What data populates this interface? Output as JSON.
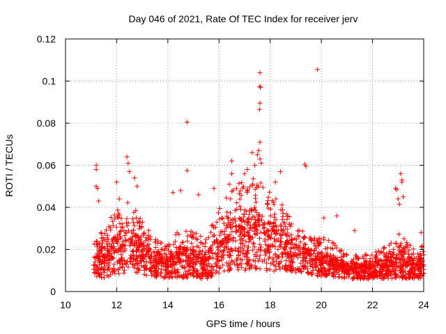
{
  "chart_data": {
    "type": "scatter",
    "marker": "plus",
    "title": "Day 046 of 2021, Rate Of TEC Index for receiver jerv",
    "xlabel": "GPS time / hours",
    "ylabel": "ROTI / TECUs",
    "xlim": [
      10,
      24
    ],
    "ylim": [
      0,
      0.12
    ],
    "grid": true,
    "xticks": [
      10,
      12,
      14,
      16,
      18,
      20,
      22,
      24
    ],
    "xtick_labels": [
      "10",
      "12",
      "14",
      "16",
      "18",
      "20",
      "22",
      "24"
    ],
    "yticks": [
      0,
      0.02,
      0.04,
      0.06,
      0.08,
      0.1,
      0.12
    ],
    "ytick_labels": [
      "0",
      "0.02",
      "0.04",
      "0.06",
      "0.08",
      "0.1",
      "0.12"
    ],
    "marker_color": "#ff0000",
    "envelope": {
      "description": "approximate typical ROTI level and spread vs time (dense cloud)",
      "time": [
        11.1,
        11.5,
        12.0,
        12.5,
        13.0,
        13.5,
        14.0,
        14.5,
        15.0,
        15.5,
        16.0,
        16.5,
        17.0,
        17.5,
        18.0,
        18.5,
        19.0,
        19.5,
        20.0,
        20.5,
        21.0,
        21.5,
        22.0,
        22.5,
        23.0,
        23.5,
        24.0
      ],
      "base": [
        0.012,
        0.014,
        0.018,
        0.02,
        0.016,
        0.013,
        0.011,
        0.014,
        0.013,
        0.012,
        0.018,
        0.022,
        0.024,
        0.025,
        0.022,
        0.02,
        0.016,
        0.014,
        0.013,
        0.012,
        0.01,
        0.009,
        0.01,
        0.011,
        0.013,
        0.011,
        0.011
      ],
      "spread": [
        0.01,
        0.015,
        0.02,
        0.022,
        0.016,
        0.012,
        0.01,
        0.015,
        0.014,
        0.012,
        0.02,
        0.025,
        0.028,
        0.03,
        0.025,
        0.02,
        0.014,
        0.012,
        0.012,
        0.01,
        0.008,
        0.007,
        0.008,
        0.01,
        0.014,
        0.01,
        0.01
      ]
    },
    "outliers": [
      {
        "x": 11.2,
        "y": 0.06
      },
      {
        "x": 11.2,
        "y": 0.058
      },
      {
        "x": 11.2,
        "y": 0.05
      },
      {
        "x": 11.25,
        "y": 0.049
      },
      {
        "x": 11.3,
        "y": 0.043
      },
      {
        "x": 12.0,
        "y": 0.052
      },
      {
        "x": 12.1,
        "y": 0.044
      },
      {
        "x": 12.4,
        "y": 0.064
      },
      {
        "x": 12.45,
        "y": 0.061
      },
      {
        "x": 12.5,
        "y": 0.057
      },
      {
        "x": 12.7,
        "y": 0.054
      },
      {
        "x": 12.8,
        "y": 0.05
      },
      {
        "x": 14.2,
        "y": 0.047
      },
      {
        "x": 14.5,
        "y": 0.048
      },
      {
        "x": 14.75,
        "y": 0.0805
      },
      {
        "x": 14.75,
        "y": 0.0575
      },
      {
        "x": 15.2,
        "y": 0.046
      },
      {
        "x": 15.8,
        "y": 0.049
      },
      {
        "x": 16.4,
        "y": 0.051
      },
      {
        "x": 16.5,
        "y": 0.056
      },
      {
        "x": 16.5,
        "y": 0.062
      },
      {
        "x": 17.0,
        "y": 0.056
      },
      {
        "x": 17.1,
        "y": 0.058
      },
      {
        "x": 17.3,
        "y": 0.066
      },
      {
        "x": 17.4,
        "y": 0.06
      },
      {
        "x": 17.5,
        "y": 0.065
      },
      {
        "x": 17.55,
        "y": 0.067
      },
      {
        "x": 17.6,
        "y": 0.104
      },
      {
        "x": 17.6,
        "y": 0.0975
      },
      {
        "x": 17.62,
        "y": 0.097
      },
      {
        "x": 17.6,
        "y": 0.0895
      },
      {
        "x": 17.58,
        "y": 0.0865
      },
      {
        "x": 17.6,
        "y": 0.071
      },
      {
        "x": 17.6,
        "y": 0.063
      },
      {
        "x": 17.65,
        "y": 0.061
      },
      {
        "x": 18.2,
        "y": 0.052
      },
      {
        "x": 18.4,
        "y": 0.057
      },
      {
        "x": 19.35,
        "y": 0.0605
      },
      {
        "x": 19.4,
        "y": 0.0595
      },
      {
        "x": 19.85,
        "y": 0.1055
      },
      {
        "x": 20.1,
        "y": 0.035
      },
      {
        "x": 20.6,
        "y": 0.036
      },
      {
        "x": 21.3,
        "y": 0.029
      },
      {
        "x": 22.9,
        "y": 0.049
      },
      {
        "x": 22.95,
        "y": 0.0485
      },
      {
        "x": 23.0,
        "y": 0.044
      },
      {
        "x": 23.05,
        "y": 0.0415
      },
      {
        "x": 23.1,
        "y": 0.056
      },
      {
        "x": 23.15,
        "y": 0.053
      },
      {
        "x": 23.15,
        "y": 0.052
      },
      {
        "x": 23.2,
        "y": 0.045
      },
      {
        "x": 23.9,
        "y": 0.028
      }
    ]
  }
}
